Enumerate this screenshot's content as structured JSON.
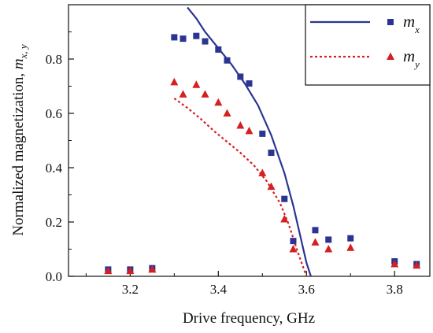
{
  "chart_data": {
    "type": "scatter",
    "xlabel": "Drive frequency, GHz",
    "ylabel": {
      "main": "Normalized magnetization, ",
      "symbol": "m",
      "sub": "x, y"
    },
    "xlim": [
      3.06,
      3.88
    ],
    "ylim": [
      0,
      1.0
    ],
    "xticks": [
      "3.2",
      "3.4",
      "3.6",
      "3.8"
    ],
    "yticks": [
      "0.0",
      "0.2",
      "0.4",
      "0.6",
      "0.8"
    ],
    "legend_position": "top-right",
    "series": [
      {
        "legend_symbol": "m",
        "legend_sub": "x",
        "color": "#2b3591",
        "marker": "square",
        "line_style": "solid",
        "points": {
          "x": [
            3.15,
            3.2,
            3.25,
            3.3,
            3.32,
            3.35,
            3.37,
            3.4,
            3.42,
            3.45,
            3.47,
            3.5,
            3.52,
            3.55,
            3.57,
            3.62,
            3.65,
            3.7,
            3.8,
            3.85
          ],
          "y": [
            0.025,
            0.025,
            0.03,
            0.88,
            0.875,
            0.885,
            0.865,
            0.835,
            0.795,
            0.735,
            0.71,
            0.525,
            0.455,
            0.285,
            0.13,
            0.17,
            0.135,
            0.14,
            0.055,
            0.045
          ]
        },
        "curve": {
          "x": [
            3.33,
            3.35,
            3.37,
            3.4,
            3.43,
            3.46,
            3.49,
            3.52,
            3.55,
            3.57,
            3.59,
            3.6,
            3.61
          ],
          "y": [
            0.99,
            0.95,
            0.9,
            0.84,
            0.78,
            0.71,
            0.63,
            0.52,
            0.38,
            0.26,
            0.12,
            0.05,
            0.0
          ]
        }
      },
      {
        "legend_symbol": "m",
        "legend_sub": "y",
        "color": "#d42020",
        "marker": "triangle",
        "line_style": "dotted",
        "points": {
          "x": [
            3.15,
            3.2,
            3.25,
            3.3,
            3.32,
            3.35,
            3.37,
            3.4,
            3.42,
            3.45,
            3.47,
            3.5,
            3.52,
            3.55,
            3.57,
            3.62,
            3.65,
            3.7,
            3.8,
            3.85
          ],
          "y": [
            0.02,
            0.02,
            0.025,
            0.715,
            0.67,
            0.705,
            0.67,
            0.64,
            0.6,
            0.555,
            0.535,
            0.38,
            0.33,
            0.21,
            0.1,
            0.125,
            0.1,
            0.105,
            0.045,
            0.04
          ]
        },
        "curve": {
          "x": [
            3.3,
            3.33,
            3.36,
            3.39,
            3.42,
            3.45,
            3.48,
            3.51,
            3.54,
            3.56,
            3.58,
            3.6
          ],
          "y": [
            0.655,
            0.62,
            0.58,
            0.535,
            0.495,
            0.455,
            0.41,
            0.35,
            0.27,
            0.19,
            0.09,
            0.0
          ]
        }
      }
    ]
  }
}
